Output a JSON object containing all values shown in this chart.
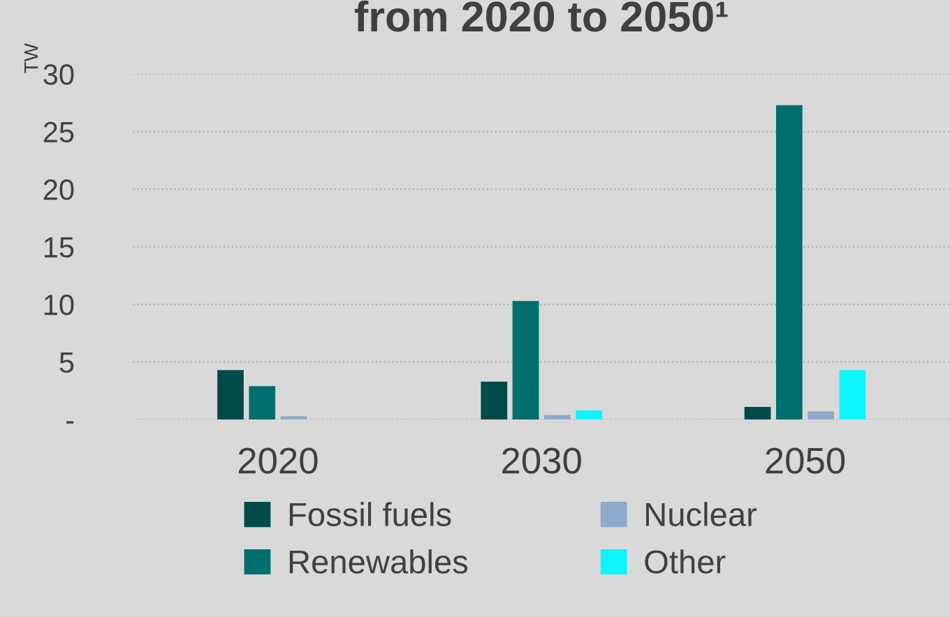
{
  "chart_data": {
    "type": "bar",
    "title": "from 2020 to 2050¹",
    "ylabel": "TW",
    "categories": [
      "2020",
      "2030",
      "2050"
    ],
    "series": [
      {
        "name": "Fossil fuels",
        "color": "#004a4a",
        "values": [
          4.3,
          3.3,
          1.1
        ]
      },
      {
        "name": "Renewables",
        "color": "#006e6e",
        "values": [
          2.9,
          10.3,
          27.3
        ]
      },
      {
        "name": "Nuclear",
        "color": "#8eaacc",
        "values": [
          0.3,
          0.4,
          0.7
        ]
      },
      {
        "name": "Other",
        "color": "#0ff5ff",
        "values": [
          null,
          0.8,
          4.3
        ]
      }
    ],
    "ylim": [
      0,
      30
    ],
    "yticks": [
      {
        "value": 0,
        "label": "-"
      },
      5,
      10,
      15,
      20,
      25,
      30
    ],
    "grid": "y",
    "legend": "bottom"
  }
}
